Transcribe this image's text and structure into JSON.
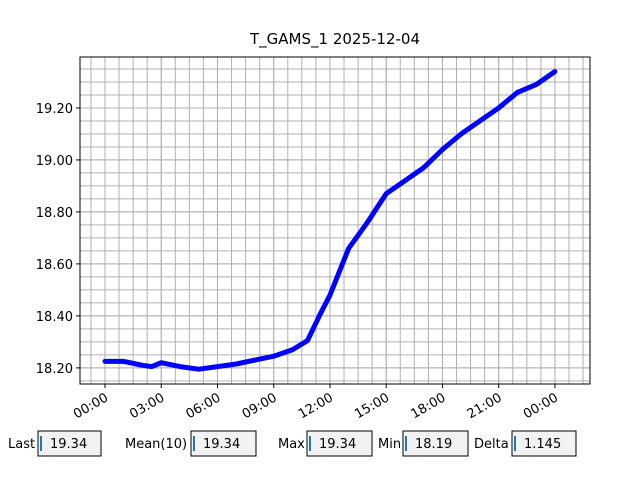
{
  "chart_data": {
    "type": "line",
    "title": "T_GAMS_1 2025-12-04",
    "x": [
      0,
      1,
      2,
      2.5,
      3,
      4,
      5,
      6,
      7,
      8,
      9,
      10,
      10.8,
      11.5,
      12,
      13,
      14,
      15,
      16,
      17,
      18,
      19,
      20,
      21,
      22,
      23,
      24
    ],
    "values": [
      18.225,
      18.225,
      18.21,
      18.205,
      18.22,
      18.205,
      18.195,
      18.205,
      18.215,
      18.23,
      18.245,
      18.27,
      18.305,
      18.41,
      18.48,
      18.66,
      18.76,
      18.87,
      18.92,
      18.97,
      19.04,
      19.1,
      19.15,
      19.2,
      19.26,
      19.29,
      19.34
    ],
    "color": "#0000ff",
    "xlim": [
      -1.333,
      25.87
    ],
    "ylim": [
      18.138,
      19.396
    ],
    "xticks": [
      {
        "value": 0,
        "label": "00:00"
      },
      {
        "value": 3,
        "label": "03:00"
      },
      {
        "value": 6,
        "label": "06:00"
      },
      {
        "value": 9,
        "label": "09:00"
      },
      {
        "value": 12,
        "label": "12:00"
      },
      {
        "value": 15,
        "label": "15:00"
      },
      {
        "value": 18,
        "label": "18:00"
      },
      {
        "value": 21,
        "label": "21:00"
      },
      {
        "value": 24,
        "label": "00:00"
      }
    ],
    "yticks": [
      {
        "value": 18.2,
        "label": "18.20"
      },
      {
        "value": 18.4,
        "label": "18.40"
      },
      {
        "value": 18.6,
        "label": "18.60"
      },
      {
        "value": 18.8,
        "label": "18.80"
      },
      {
        "value": 19.0,
        "label": "19.00"
      },
      {
        "value": 19.2,
        "label": "19.20"
      }
    ],
    "grid": true
  },
  "fields": [
    {
      "label": "Last",
      "value": "19.34"
    },
    {
      "label": "Mean(10)",
      "value": "19.34"
    },
    {
      "label": "Max",
      "value": "19.34"
    },
    {
      "label": "Min",
      "value": "18.19"
    },
    {
      "label": "Delta",
      "value": "1.145"
    }
  ]
}
